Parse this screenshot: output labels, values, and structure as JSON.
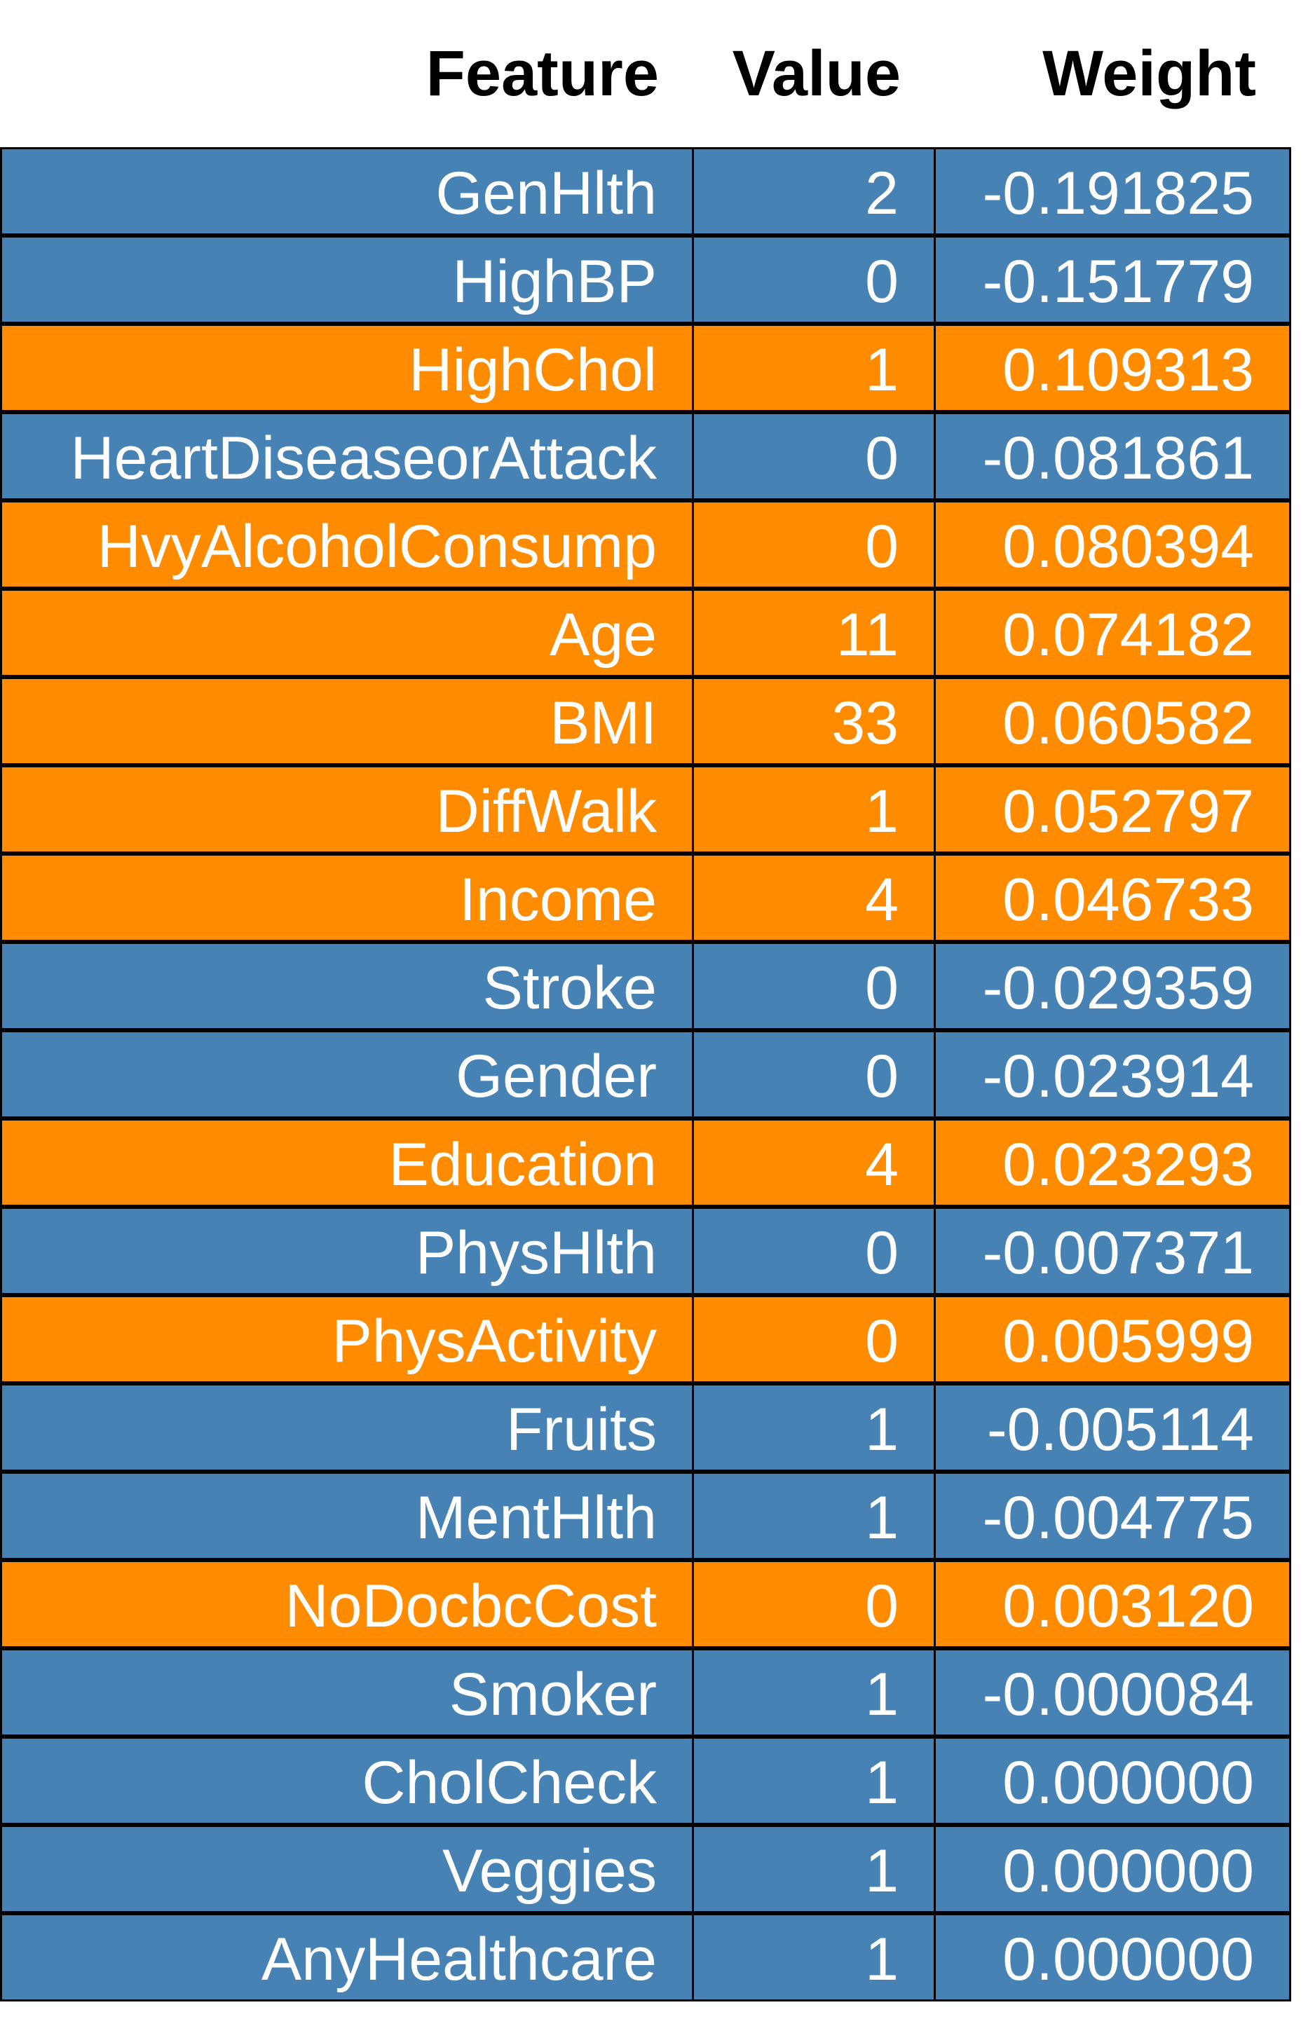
{
  "chart_data": {
    "type": "table",
    "columns": [
      "Feature",
      "Value",
      "Weight"
    ],
    "colors": {
      "negative": "#4682B4",
      "positive": "#FF8C00"
    },
    "rows": [
      {
        "feature": "GenHlth",
        "value": "2",
        "weight": "-0.191825",
        "sign": "negative"
      },
      {
        "feature": "HighBP",
        "value": "0",
        "weight": "-0.151779",
        "sign": "negative"
      },
      {
        "feature": "HighChol",
        "value": "1",
        "weight": "0.109313",
        "sign": "positive"
      },
      {
        "feature": "HeartDiseaseorAttack",
        "value": "0",
        "weight": "-0.081861",
        "sign": "negative"
      },
      {
        "feature": "HvyAlcoholConsump",
        "value": "0",
        "weight": "0.080394",
        "sign": "positive"
      },
      {
        "feature": "Age",
        "value": "11",
        "weight": "0.074182",
        "sign": "positive"
      },
      {
        "feature": "BMI",
        "value": "33",
        "weight": "0.060582",
        "sign": "positive"
      },
      {
        "feature": "DiffWalk",
        "value": "1",
        "weight": "0.052797",
        "sign": "positive"
      },
      {
        "feature": "Income",
        "value": "4",
        "weight": "0.046733",
        "sign": "positive"
      },
      {
        "feature": "Stroke",
        "value": "0",
        "weight": "-0.029359",
        "sign": "negative"
      },
      {
        "feature": "Gender",
        "value": "0",
        "weight": "-0.023914",
        "sign": "negative"
      },
      {
        "feature": "Education",
        "value": "4",
        "weight": "0.023293",
        "sign": "positive"
      },
      {
        "feature": "PhysHlth",
        "value": "0",
        "weight": "-0.007371",
        "sign": "negative"
      },
      {
        "feature": "PhysActivity",
        "value": "0",
        "weight": "0.005999",
        "sign": "positive"
      },
      {
        "feature": "Fruits",
        "value": "1",
        "weight": "-0.005114",
        "sign": "negative"
      },
      {
        "feature": "MentHlth",
        "value": "1",
        "weight": "-0.004775",
        "sign": "negative"
      },
      {
        "feature": "NoDocbcCost",
        "value": "0",
        "weight": "0.003120",
        "sign": "positive"
      },
      {
        "feature": "Smoker",
        "value": "1",
        "weight": "-0.000084",
        "sign": "negative"
      },
      {
        "feature": "CholCheck",
        "value": "1",
        "weight": "0.000000",
        "sign": "negative"
      },
      {
        "feature": "Veggies",
        "value": "1",
        "weight": "0.000000",
        "sign": "negative"
      },
      {
        "feature": "AnyHealthcare",
        "value": "1",
        "weight": "0.000000",
        "sign": "negative"
      }
    ]
  }
}
